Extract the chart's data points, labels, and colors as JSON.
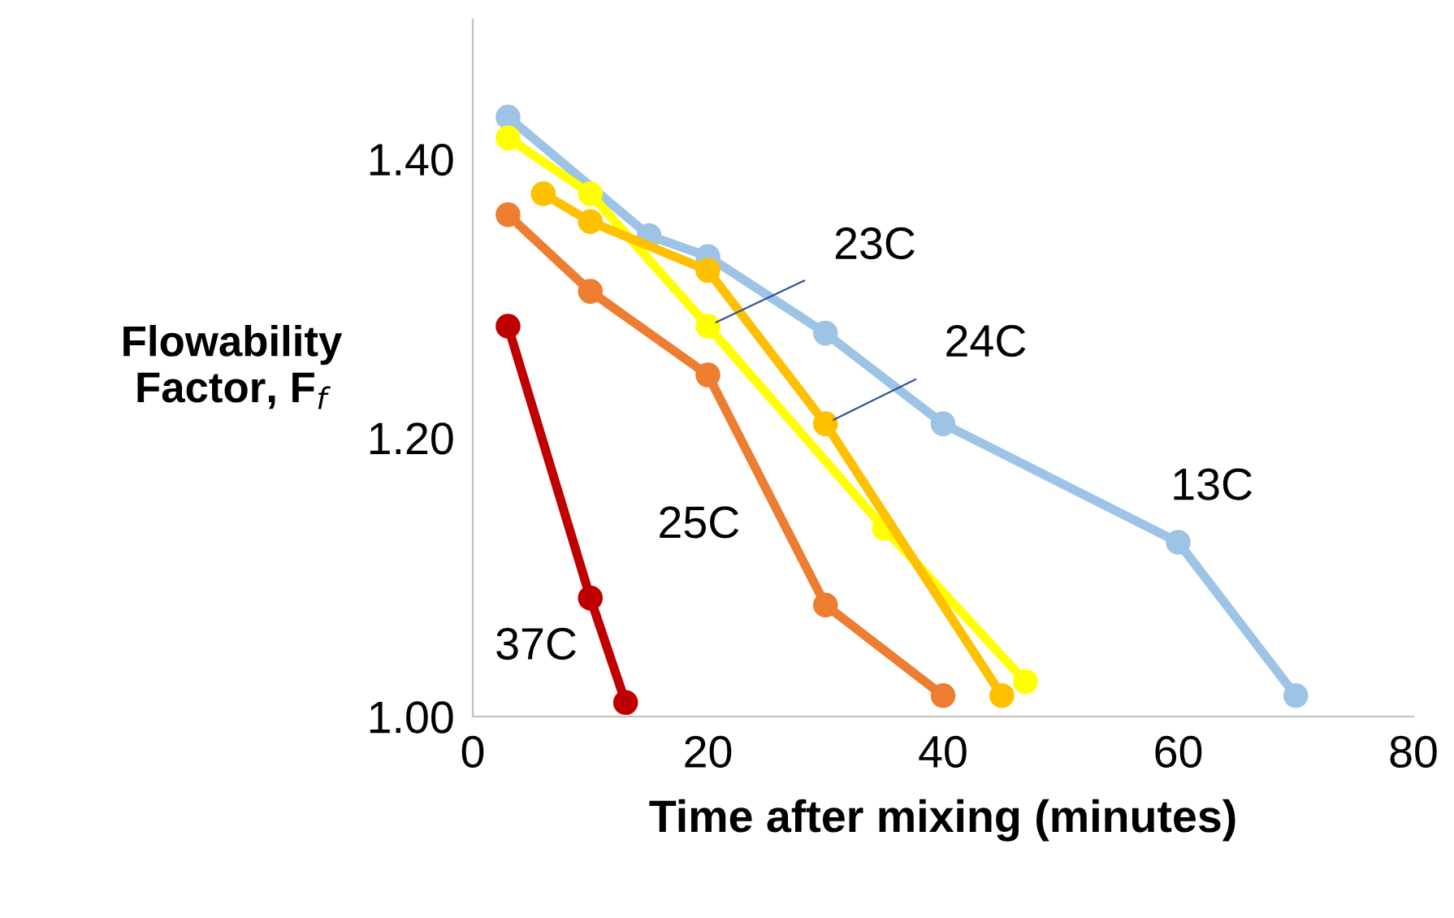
{
  "chart_data": {
    "type": "line",
    "xlabel": "Time after mixing (minutes)",
    "ylabel": "Flowability\nFactor, F$_{f}$",
    "xlim": [
      0,
      80
    ],
    "xticks": [
      0,
      20,
      40,
      60,
      80
    ],
    "ylim": [
      1.0,
      1.5
    ],
    "yticks": [
      {
        "value": 1.0,
        "label": "1.00"
      },
      {
        "value": 1.2,
        "label": "1.20"
      },
      {
        "value": 1.4,
        "label": "1.40"
      }
    ],
    "grid": false,
    "marker": "circle",
    "line_style": "solid",
    "series": [
      {
        "color": "#9dc3e6",
        "x": [
          3,
          15,
          20,
          30,
          40,
          60,
          70
        ],
        "values": [
          1.43,
          1.345,
          1.33,
          1.275,
          1.21,
          1.125,
          1.015
        ]
      },
      {
        "color": "#ffff00",
        "x": [
          3,
          10,
          20,
          35,
          47
        ],
        "values": [
          1.415,
          1.375,
          1.28,
          1.135,
          1.025
        ]
      },
      {
        "color": "#ffc000",
        "x": [
          6,
          10,
          20,
          30,
          45
        ],
        "values": [
          1.375,
          1.355,
          1.32,
          1.21,
          1.015
        ]
      },
      {
        "color": "#ed7d31",
        "x": [
          3,
          10,
          20,
          30,
          40
        ],
        "values": [
          1.36,
          1.305,
          1.245,
          1.08,
          1.015
        ]
      },
      {
        "color": "#c00000",
        "x": [
          3,
          10,
          13
        ],
        "values": [
          1.28,
          1.085,
          1.01
        ]
      }
    ],
    "annotations": [
      {
        "text": "23C",
        "x": 20,
        "y": 1.28
      },
      {
        "text": "24C",
        "x": 30,
        "y": 1.21
      },
      {
        "text": "13C",
        "x": 60,
        "y": 1.125
      },
      {
        "text": "25C",
        "x": 20,
        "y": 1.245
      },
      {
        "text": "37C",
        "x": 10,
        "y": 1.085
      }
    ]
  }
}
